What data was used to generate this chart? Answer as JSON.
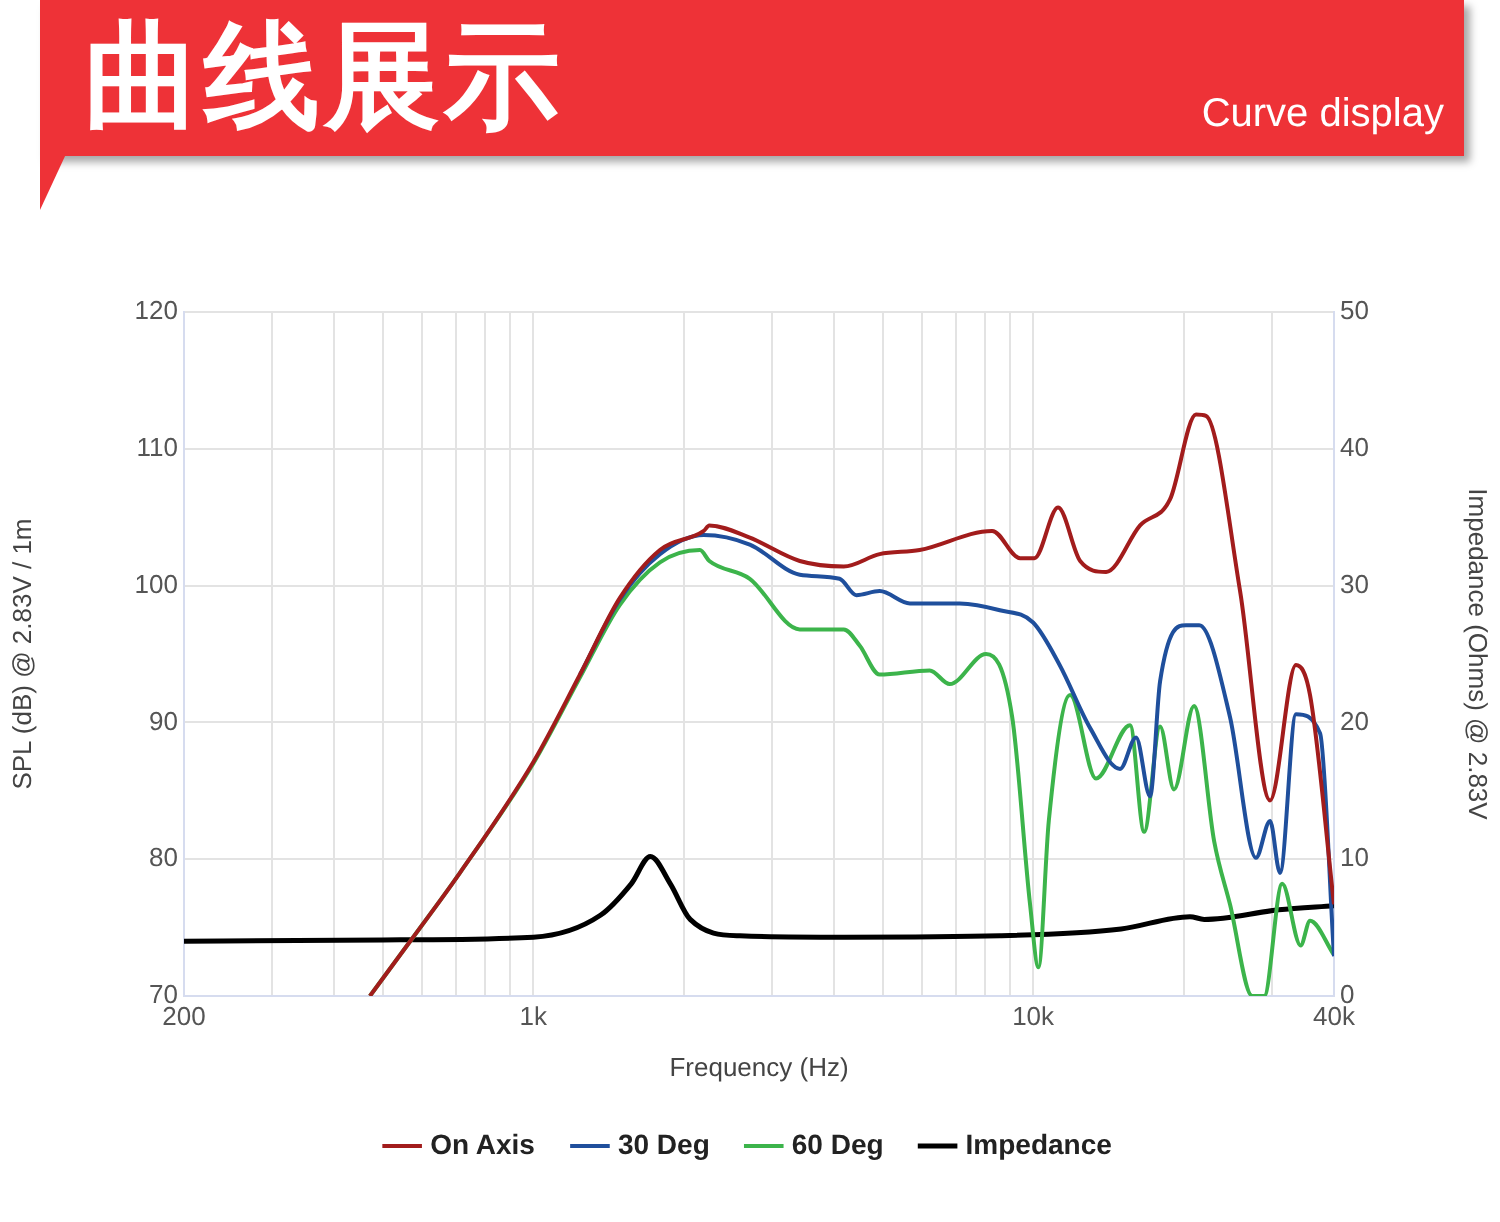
{
  "chart_data": {
    "type": "line",
    "title": "曲线展示",
    "subtitle": "Curve display",
    "xlabel": "Frequency (Hz)",
    "ylabel": "SPL (dB) @ 2.83V / 1m",
    "y2label": "Impedance (Ohms) @ 2.83V",
    "log": "x",
    "grid": true,
    "legend": "bottom",
    "marker": "none",
    "line_style": "solid",
    "xlim": [
      200,
      40000
    ],
    "xticks": [
      200,
      {
        "value": 300,
        "label": null
      },
      {
        "value": 400,
        "label": null
      },
      {
        "value": 500,
        "label": null
      },
      {
        "value": 600,
        "label": null
      },
      {
        "value": 700,
        "label": null
      },
      {
        "value": 800,
        "label": null
      },
      {
        "value": 900,
        "label": null
      },
      {
        "value": 1000,
        "label": "1k"
      },
      {
        "value": 2000,
        "label": null
      },
      {
        "value": 3000,
        "label": null
      },
      {
        "value": 4000,
        "label": null
      },
      {
        "value": 5000,
        "label": null
      },
      {
        "value": 6000,
        "label": null
      },
      {
        "value": 7000,
        "label": null
      },
      {
        "value": 8000,
        "label": null
      },
      {
        "value": 9000,
        "label": null
      },
      {
        "value": 10000,
        "label": "10k"
      },
      {
        "value": 20000,
        "label": null
      },
      {
        "value": 30000,
        "label": null
      },
      {
        "value": 40000,
        "label": "40k"
      }
    ],
    "ylim": [
      70,
      120
    ],
    "yticks": [
      70,
      80,
      90,
      100,
      110,
      120
    ],
    "y2lim": [
      0,
      50
    ],
    "y2ticks": [
      0,
      10,
      20,
      30,
      40,
      50
    ],
    "series": [
      {
        "name": "On Axis",
        "color": "#a21c1c",
        "x": [
          471,
          567,
          713,
          1000,
          1240,
          1490,
          1792,
          2193,
          2250,
          2711,
          3413,
          4180,
          4930,
          5930,
          8280,
          9420,
          10060,
          11220,
          12420,
          14000,
          16370,
          18790,
          21180,
          22180,
          25950,
          29790,
          33570,
          35820,
          40000
        ],
        "values": [
          70,
          74,
          79,
          87.1,
          93.5,
          99.1,
          102.6,
          104,
          104.4,
          103.5,
          101.8,
          101.4,
          102.3,
          102.6,
          104,
          102,
          102,
          105.7,
          101.8,
          101,
          104.4,
          106.3,
          112.5,
          112.4,
          99.6,
          84.3,
          94.2,
          92,
          76.7
        ]
      },
      {
        "name": "30 Deg",
        "color": "#1f4f9c",
        "x": [
          1240,
          1490,
          1792,
          2193,
          2711,
          3413,
          4100,
          4430,
          4930,
          5670,
          7130,
          8580,
          10000,
          11300,
          13000,
          14930,
          16070,
          17140,
          17950,
          20220,
          21500,
          24770,
          27920,
          29790,
          31190,
          33570,
          37510,
          40000
        ],
        "values": [
          93.5,
          99,
          102.3,
          103.7,
          103,
          100.8,
          100.5,
          99.3,
          99.6,
          98.7,
          98.7,
          98.2,
          97.3,
          94.2,
          89.6,
          86.6,
          88.9,
          84.6,
          93,
          97.1,
          97.1,
          90.4,
          80.1,
          82.8,
          79,
          90.6,
          89.2,
          72.9
        ]
      },
      {
        "name": "60 Deg",
        "color": "#3cb44b",
        "x": [
          471,
          567,
          713,
          1000,
          1240,
          1490,
          1792,
          2155,
          2250,
          2711,
          3413,
          4180,
          4500,
          4930,
          6210,
          6810,
          8050,
          9080,
          9860,
          10250,
          10750,
          11860,
          13360,
          15630,
          16680,
          17950,
          19140,
          20990,
          23030,
          24770,
          27450,
          29000,
          31500,
          34300,
          35820,
          40000
        ],
        "values": [
          70,
          74,
          79,
          87,
          93.3,
          98.6,
          101.7,
          102.6,
          101.8,
          100.5,
          96.8,
          96.8,
          95.6,
          93.5,
          93.8,
          92.8,
          95,
          90.4,
          76.7,
          72.1,
          82.8,
          92,
          85.9,
          89.8,
          82,
          89.7,
          85.1,
          91.2,
          81.3,
          76.7,
          70,
          70,
          78.2,
          73.7,
          75.5,
          73
        ]
      },
      {
        "name": "Impedance",
        "color": "#000000",
        "axis": "y2",
        "x": [
          200,
          500,
          1000,
          1362,
          1570,
          1715,
          1880,
          2060,
          2590,
          4200,
          8580,
          15000,
          20600,
          22000,
          31000,
          40000
        ],
        "values": [
          4,
          4.1,
          4.3,
          5.9,
          8.2,
          10.2,
          8.2,
          5.6,
          4.4,
          4.3,
          4.4,
          4.9,
          5.8,
          5.6,
          6.3,
          6.6
        ]
      }
    ]
  }
}
